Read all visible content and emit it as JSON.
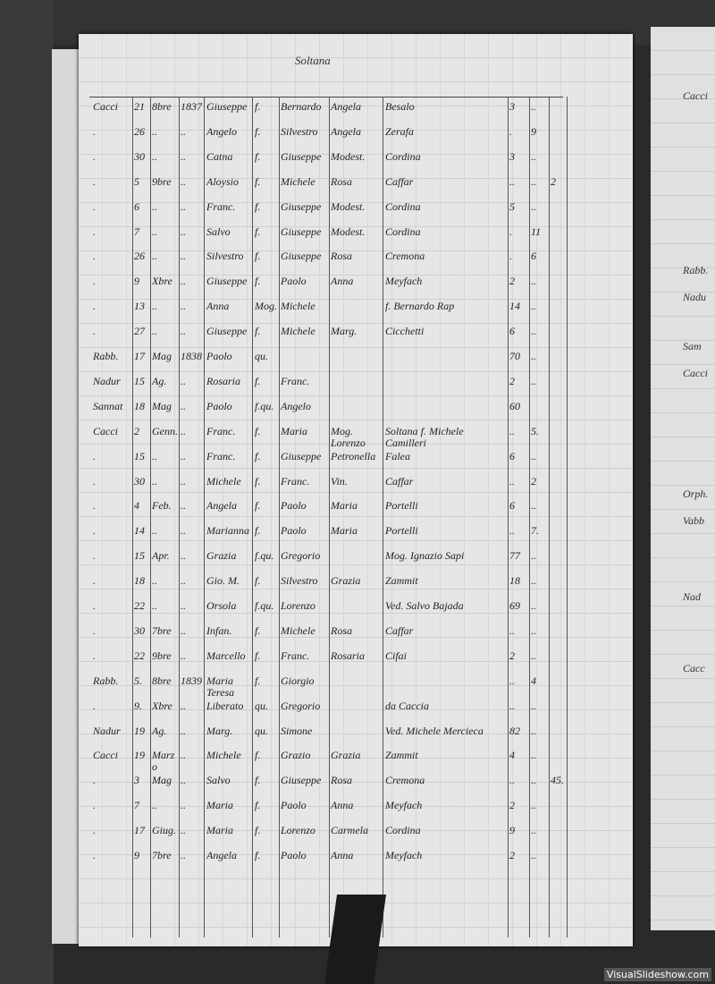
{
  "page_title": "Soltana",
  "rows": [
    [
      "Cacci",
      "21",
      "8bre",
      "1837",
      "Giuseppe",
      "f.",
      "Bernardo",
      "Angela",
      "Besalo",
      "3",
      "..",
      ""
    ],
    [
      ".",
      "26",
      "..",
      "..",
      "Angelo",
      "f.",
      "Silvestro",
      "Angela",
      "Zerafa",
      ".",
      "9",
      ""
    ],
    [
      ".",
      "30",
      "..",
      "..",
      "Catna",
      "f.",
      "Giuseppe",
      "Modest.",
      "Cordina",
      "3",
      "..",
      ""
    ],
    [
      ".",
      "5",
      "9bre",
      "..",
      "Aloysio",
      "f.",
      "Michele",
      "Rosa",
      "Caffar",
      "..",
      "..",
      "2"
    ],
    [
      ".",
      "6",
      "..",
      "..",
      "Franc.",
      "f.",
      "Giuseppe",
      "Modest.",
      "Cordina",
      "5",
      "..",
      ""
    ],
    [
      ".",
      "7",
      "..",
      "..",
      "Salvo",
      "f.",
      "Giuseppe",
      "Modest.",
      "Cordina",
      ".",
      "11",
      ""
    ],
    [
      ".",
      "26",
      "..",
      "..",
      "Silvestro",
      "f.",
      "Giuseppe",
      "Rosa",
      "Cremona",
      ".",
      "6",
      ""
    ],
    [
      ".",
      "9",
      "Xbre",
      "..",
      "Giuseppe",
      "f.",
      "Paolo",
      "Anna",
      "Meyfach",
      "2",
      "..",
      ""
    ],
    [
      ".",
      "13",
      "..",
      "..",
      "Anna",
      "Mog.",
      "Michele",
      "",
      "f. Bernardo Rap",
      "14",
      "..",
      ""
    ],
    [
      ".",
      "27",
      "..",
      "..",
      "Giuseppe",
      "f.",
      "Michele",
      "Marg.",
      "Cicchetti",
      "6",
      "..",
      ""
    ],
    [
      "Rabb.",
      "17",
      "Mag",
      "1838",
      "Paolo",
      "qu.",
      "",
      "",
      "",
      "70",
      "..",
      ""
    ],
    [
      "Nadur",
      "15",
      "Ag.",
      "..",
      "Rosaria",
      "f.",
      "Franc.",
      "",
      "",
      "2",
      "..",
      ""
    ],
    [
      "Sannat",
      "18",
      "Mag",
      "..",
      "Paolo",
      "f.qu.",
      "Angelo",
      "",
      "",
      "60",
      "",
      ""
    ],
    [
      "Cacci",
      "2",
      "Genn.",
      "..",
      "Franc.",
      "f.",
      "Maria",
      "Mog. Lorenzo",
      "Soltana f. Michele Camilleri",
      "..",
      "5.",
      ""
    ],
    [
      ".",
      "15",
      "..",
      "..",
      "Franc.",
      "f.",
      "Giuseppe",
      "Petronella",
      "Falea",
      "6",
      "..",
      ""
    ],
    [
      ".",
      "30",
      "..",
      "..",
      "Michele",
      "f.",
      "Franc.",
      "Vin.",
      "Caffar",
      "..",
      "2",
      ""
    ],
    [
      ".",
      "4",
      "Feb.",
      "..",
      "Angela",
      "f.",
      "Paolo",
      "Maria",
      "Portelli",
      "6",
      "..",
      ""
    ],
    [
      ".",
      "14",
      "..",
      "..",
      "Marianna",
      "f.",
      "Paolo",
      "Maria",
      "Portelli",
      "..",
      "7.",
      ""
    ],
    [
      ".",
      "15",
      "Apr.",
      "..",
      "Grazia",
      "f.qu.",
      "Gregorio",
      "",
      "Mog. Ignazio Sapi",
      "77",
      "..",
      ""
    ],
    [
      ".",
      "18",
      "..",
      "..",
      "Gio. M.",
      "f.",
      "Silvestro",
      "Grazia",
      "Zammit",
      "18",
      "..",
      ""
    ],
    [
      ".",
      "22",
      "..",
      "..",
      "Orsola",
      "f.qu.",
      "Lorenzo",
      "",
      "Ved. Salvo Bajada",
      "69",
      "..",
      ""
    ],
    [
      ".",
      "30",
      "7bre",
      "..",
      "Infan.",
      "f.",
      "Michele",
      "Rosa",
      "Caffar",
      "..",
      "..",
      ""
    ],
    [
      ".",
      "22",
      "9bre",
      "..",
      "Marcello",
      "f.",
      "Franc.",
      "Rosaria",
      "Cifai",
      "2",
      "..",
      ""
    ],
    [
      "Rabb.",
      "5.",
      "8bre",
      "1839",
      "Maria Teresa",
      "f.",
      "Giorgio",
      "",
      "",
      "..",
      "4",
      ""
    ],
    [
      ".",
      "9.",
      "Xbre",
      "..",
      "Liberato",
      "qu.",
      "Gregorio",
      "",
      "da Caccia",
      "..",
      "..",
      ""
    ],
    [
      "Nadur",
      "19",
      "Ag.",
      "..",
      "Marg.",
      "qu.",
      "Simone",
      "",
      "Ved. Michele Mercieca",
      "82",
      "..",
      ""
    ],
    [
      "Cacci",
      "19",
      "Marzo",
      "..",
      "Michele",
      "f.",
      "Grazio",
      "Grazia",
      "Zammit",
      "4",
      "..",
      ""
    ],
    [
      ".",
      "3",
      "Mag",
      "..",
      "Salvo",
      "f.",
      "Giuseppe",
      "Rosa",
      "Cremona",
      "..",
      "..",
      "45."
    ],
    [
      ".",
      "7",
      "..",
      "..",
      "Maria",
      "f.",
      "Paolo",
      "Anna",
      "Meyfach",
      "2",
      "..",
      ""
    ],
    [
      ".",
      "17",
      "Giug.",
      "..",
      "Maria",
      "f.",
      "Lorenzo",
      "Carmela",
      "Cordina",
      "9",
      "..",
      ""
    ],
    [
      ".",
      "9",
      "7bre",
      "..",
      "Angela",
      "f.",
      "Paolo",
      "Anna",
      "Meyfach",
      "2",
      "..",
      ""
    ]
  ],
  "right_page_fragments": [
    "Cacci",
    "Rabb.",
    "Nadu",
    "Sam",
    "Cacci",
    "Orph.",
    "Vabb",
    "Nad",
    "Cacc"
  ],
  "watermark": "VisualSlideshow.com"
}
